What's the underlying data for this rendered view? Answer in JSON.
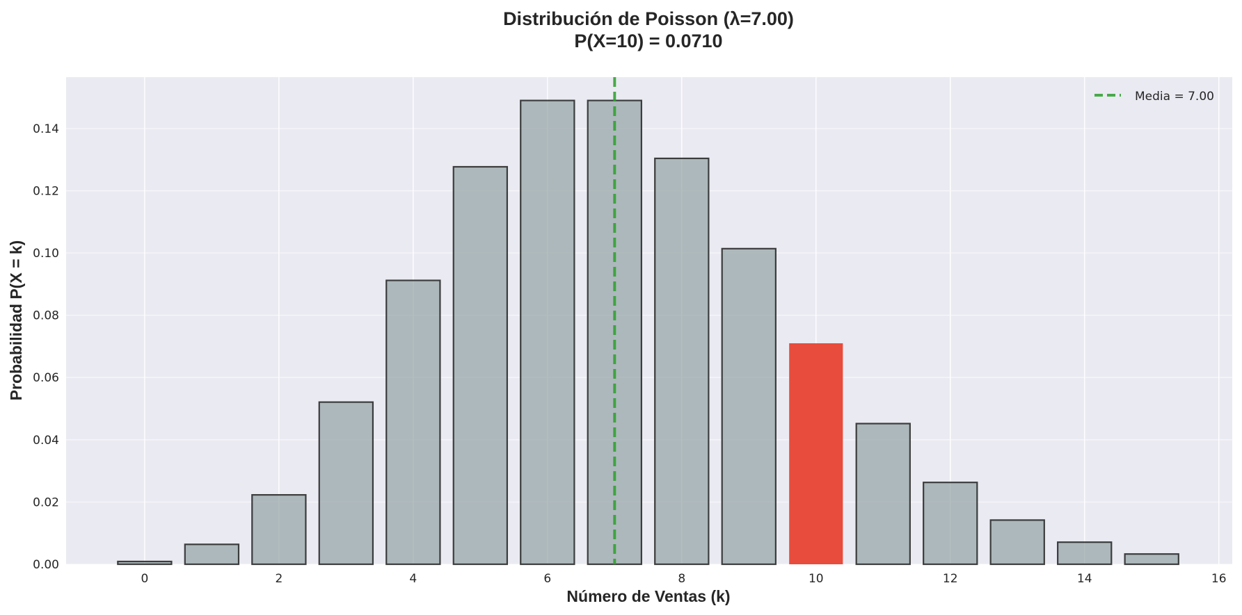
{
  "chart_data": {
    "type": "bar",
    "title": "Distribución de Poisson (λ=7.00)",
    "subtitle": "P(X=10) = 0.0710",
    "xlabel": "Número de Ventas (k)",
    "ylabel": "Probabilidad P(X = k)",
    "x": [
      0,
      1,
      2,
      3,
      4,
      5,
      6,
      7,
      8,
      9,
      10,
      11,
      12,
      13,
      14,
      15
    ],
    "values": [
      0.0009,
      0.0064,
      0.0223,
      0.0521,
      0.0912,
      0.1277,
      0.149,
      0.149,
      0.1304,
      0.1014,
      0.071,
      0.0452,
      0.0263,
      0.0142,
      0.0071,
      0.0033
    ],
    "highlight_x": 10,
    "xlim": [
      -1.17,
      16.2
    ],
    "ylim": [
      0,
      0.1565
    ],
    "xticks": [
      0,
      2,
      4,
      6,
      8,
      10,
      12,
      14,
      16
    ],
    "yticks": [
      0.0,
      0.02,
      0.04,
      0.06,
      0.08,
      0.1,
      0.12,
      0.14
    ],
    "ytick_labels": [
      "0.00",
      "0.02",
      "0.04",
      "0.06",
      "0.08",
      "0.10",
      "0.12",
      "0.14"
    ],
    "mean_line": {
      "x": 7.0,
      "label": "Media = 7.00",
      "color": "#2ca02c",
      "style": "dashed"
    },
    "bar_color": "#95a5a6",
    "highlight_color": "#e74c3c",
    "plot_background": "#eaeaf2",
    "grid": true,
    "legend_position": "top-right"
  }
}
